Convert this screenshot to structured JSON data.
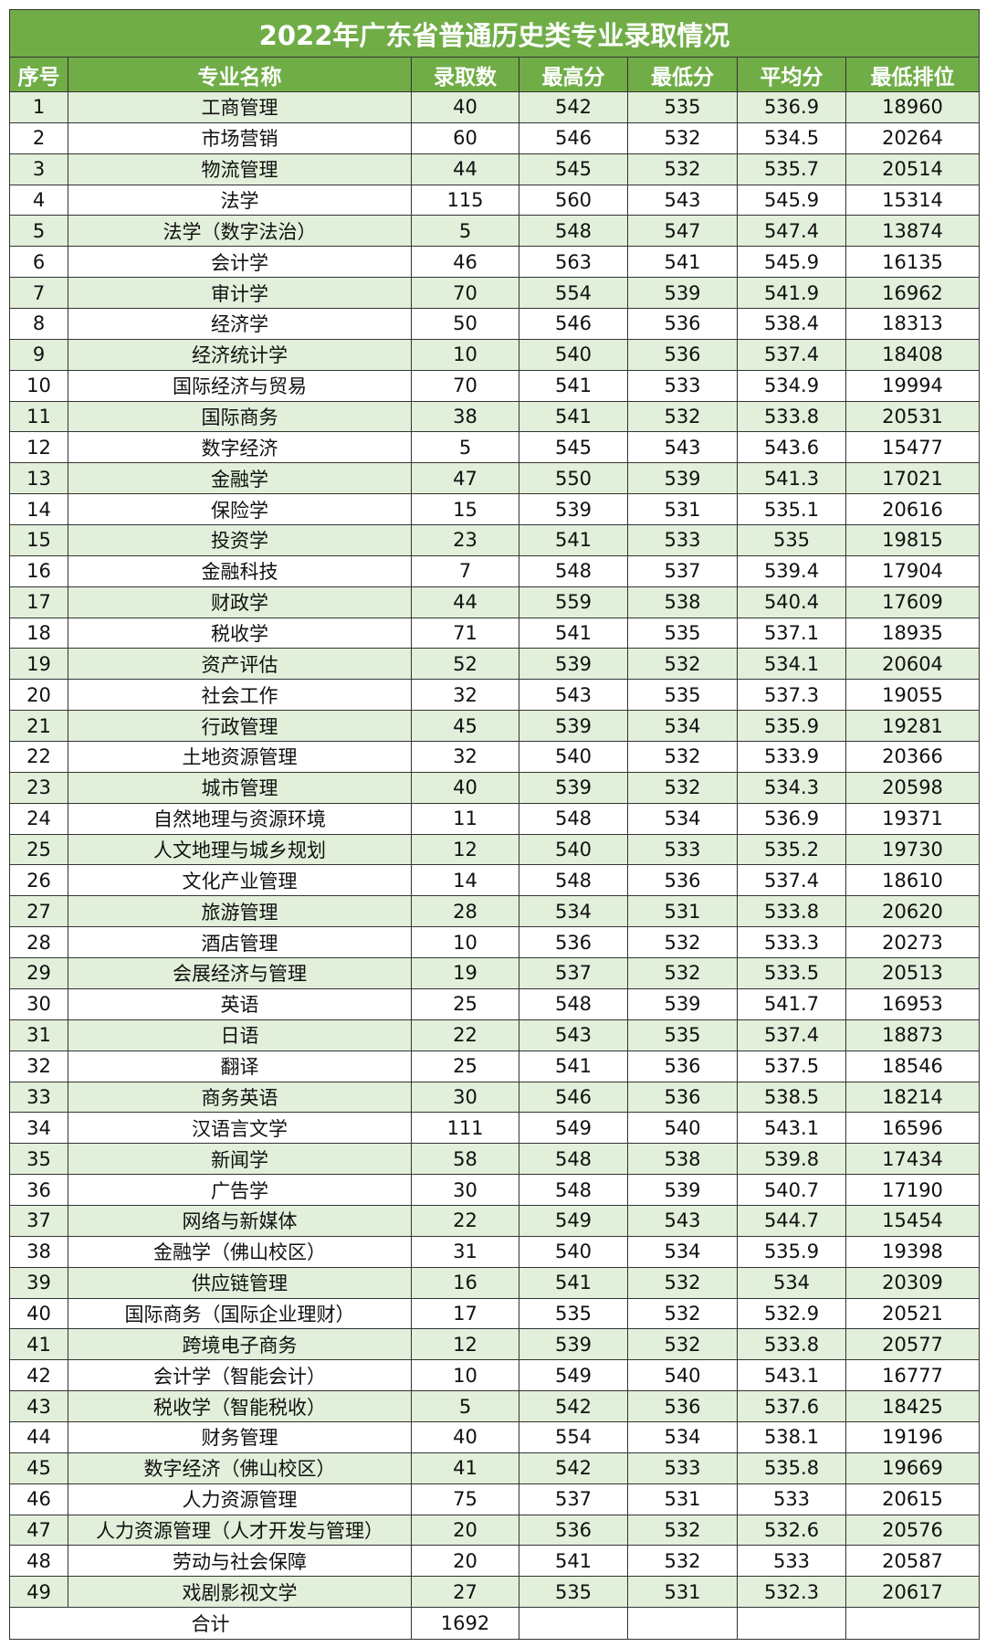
{
  "title": "2022年广东省普通历史类专业录取情况",
  "colors": {
    "header_bg": "#70ad47",
    "odd_row_bg": "#e2efda",
    "even_row_bg": "#ffffff"
  },
  "columns": [
    "序号",
    "专业名称",
    "录取数",
    "最高分",
    "最低分",
    "平均分",
    "最低排位"
  ],
  "rows": [
    [
      "1",
      "工商管理",
      "40",
      "542",
      "535",
      "536.9",
      "18960"
    ],
    [
      "2",
      "市场营销",
      "60",
      "546",
      "532",
      "534.5",
      "20264"
    ],
    [
      "3",
      "物流管理",
      "44",
      "545",
      "532",
      "535.7",
      "20514"
    ],
    [
      "4",
      "法学",
      "115",
      "560",
      "543",
      "545.9",
      "15314"
    ],
    [
      "5",
      "法学（数字法治）",
      "5",
      "548",
      "547",
      "547.4",
      "13874"
    ],
    [
      "6",
      "会计学",
      "46",
      "563",
      "541",
      "545.9",
      "16135"
    ],
    [
      "7",
      "审计学",
      "70",
      "554",
      "539",
      "541.9",
      "16962"
    ],
    [
      "8",
      "经济学",
      "50",
      "546",
      "536",
      "538.4",
      "18313"
    ],
    [
      "9",
      "经济统计学",
      "10",
      "540",
      "536",
      "537.4",
      "18408"
    ],
    [
      "10",
      "国际经济与贸易",
      "70",
      "541",
      "533",
      "534.9",
      "19994"
    ],
    [
      "11",
      "国际商务",
      "38",
      "541",
      "532",
      "533.8",
      "20531"
    ],
    [
      "12",
      "数字经济",
      "5",
      "545",
      "543",
      "543.6",
      "15477"
    ],
    [
      "13",
      "金融学",
      "47",
      "550",
      "539",
      "541.3",
      "17021"
    ],
    [
      "14",
      "保险学",
      "15",
      "539",
      "531",
      "535.1",
      "20616"
    ],
    [
      "15",
      "投资学",
      "23",
      "541",
      "533",
      "535",
      "19815"
    ],
    [
      "16",
      "金融科技",
      "7",
      "548",
      "537",
      "539.4",
      "17904"
    ],
    [
      "17",
      "财政学",
      "44",
      "559",
      "538",
      "540.4",
      "17609"
    ],
    [
      "18",
      "税收学",
      "71",
      "541",
      "535",
      "537.1",
      "18935"
    ],
    [
      "19",
      "资产评估",
      "52",
      "539",
      "532",
      "534.1",
      "20604"
    ],
    [
      "20",
      "社会工作",
      "32",
      "543",
      "535",
      "537.3",
      "19055"
    ],
    [
      "21",
      "行政管理",
      "45",
      "539",
      "534",
      "535.9",
      "19281"
    ],
    [
      "22",
      "土地资源管理",
      "32",
      "540",
      "532",
      "533.9",
      "20366"
    ],
    [
      "23",
      "城市管理",
      "40",
      "539",
      "532",
      "534.3",
      "20598"
    ],
    [
      "24",
      "自然地理与资源环境",
      "11",
      "548",
      "534",
      "536.9",
      "19371"
    ],
    [
      "25",
      "人文地理与城乡规划",
      "12",
      "540",
      "533",
      "535.2",
      "19730"
    ],
    [
      "26",
      "文化产业管理",
      "14",
      "548",
      "536",
      "537.4",
      "18610"
    ],
    [
      "27",
      "旅游管理",
      "28",
      "534",
      "531",
      "533.8",
      "20620"
    ],
    [
      "28",
      "酒店管理",
      "10",
      "536",
      "532",
      "533.3",
      "20273"
    ],
    [
      "29",
      "会展经济与管理",
      "19",
      "537",
      "532",
      "533.5",
      "20513"
    ],
    [
      "30",
      "英语",
      "25",
      "548",
      "539",
      "541.7",
      "16953"
    ],
    [
      "31",
      "日语",
      "22",
      "543",
      "535",
      "537.4",
      "18873"
    ],
    [
      "32",
      "翻译",
      "25",
      "541",
      "536",
      "537.5",
      "18546"
    ],
    [
      "33",
      "商务英语",
      "30",
      "546",
      "536",
      "538.5",
      "18214"
    ],
    [
      "34",
      "汉语言文学",
      "111",
      "549",
      "540",
      "543.1",
      "16596"
    ],
    [
      "35",
      "新闻学",
      "58",
      "548",
      "538",
      "539.8",
      "17434"
    ],
    [
      "36",
      "广告学",
      "30",
      "548",
      "539",
      "540.7",
      "17190"
    ],
    [
      "37",
      "网络与新媒体",
      "22",
      "549",
      "543",
      "544.7",
      "15454"
    ],
    [
      "38",
      "金融学（佛山校区）",
      "31",
      "540",
      "534",
      "535.9",
      "19398"
    ],
    [
      "39",
      "供应链管理",
      "16",
      "541",
      "532",
      "534",
      "20309"
    ],
    [
      "40",
      "国际商务（国际企业理财）",
      "17",
      "535",
      "532",
      "532.9",
      "20521"
    ],
    [
      "41",
      "跨境电子商务",
      "12",
      "539",
      "532",
      "533.8",
      "20577"
    ],
    [
      "42",
      "会计学（智能会计）",
      "10",
      "549",
      "540",
      "543.1",
      "16777"
    ],
    [
      "43",
      "税收学（智能税收）",
      "5",
      "542",
      "536",
      "537.6",
      "18425"
    ],
    [
      "44",
      "财务管理",
      "40",
      "554",
      "534",
      "538.1",
      "19196"
    ],
    [
      "45",
      "数字经济（佛山校区）",
      "41",
      "542",
      "533",
      "535.8",
      "19669"
    ],
    [
      "46",
      "人力资源管理",
      "75",
      "537",
      "531",
      "533",
      "20615"
    ],
    [
      "47",
      "人力资源管理（人才开发与管理）",
      "20",
      "536",
      "532",
      "532.6",
      "20576"
    ],
    [
      "48",
      "劳动与社会保障",
      "20",
      "541",
      "532",
      "533",
      "20587"
    ],
    [
      "49",
      "戏剧影视文学",
      "27",
      "535",
      "531",
      "532.3",
      "20617"
    ]
  ],
  "total": {
    "label": "合计",
    "count": "1692"
  }
}
